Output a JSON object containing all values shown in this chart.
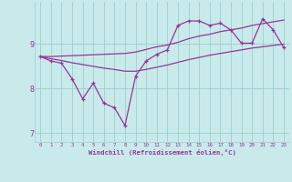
{
  "xlabel": "Windchill (Refroidissement éolien,°C)",
  "x": [
    0,
    1,
    2,
    3,
    4,
    5,
    6,
    7,
    8,
    9,
    10,
    11,
    12,
    13,
    14,
    15,
    16,
    17,
    18,
    19,
    20,
    21,
    22,
    23
  ],
  "y_main": [
    8.72,
    8.62,
    8.57,
    8.22,
    7.77,
    8.12,
    7.67,
    7.57,
    7.17,
    8.28,
    8.62,
    8.77,
    8.87,
    9.42,
    9.52,
    9.52,
    9.42,
    9.47,
    9.32,
    9.02,
    9.02,
    9.57,
    9.32,
    8.92
  ],
  "y_upper": [
    8.72,
    8.72,
    8.73,
    8.74,
    8.75,
    8.76,
    8.77,
    8.78,
    8.79,
    8.82,
    8.88,
    8.94,
    8.98,
    9.04,
    9.12,
    9.18,
    9.22,
    9.28,
    9.32,
    9.36,
    9.42,
    9.46,
    9.5,
    9.54
  ],
  "y_lower": [
    8.72,
    8.67,
    8.63,
    8.58,
    8.54,
    8.5,
    8.46,
    8.43,
    8.39,
    8.39,
    8.43,
    8.48,
    8.53,
    8.59,
    8.65,
    8.7,
    8.75,
    8.79,
    8.83,
    8.87,
    8.91,
    8.94,
    8.97,
    9.0
  ],
  "line_color": "#993399",
  "bg_color": "#c8eaea",
  "plot_bg": "#c8eaea",
  "grid_color": "#9ecece",
  "ylim": [
    6.8,
    9.95
  ],
  "yticks": [
    7,
    8,
    9
  ],
  "xlim": [
    -0.5,
    23.5
  ],
  "xticks": [
    0,
    1,
    2,
    3,
    4,
    5,
    6,
    7,
    8,
    9,
    10,
    11,
    12,
    13,
    14,
    15,
    16,
    17,
    18,
    19,
    20,
    21,
    22,
    23
  ]
}
